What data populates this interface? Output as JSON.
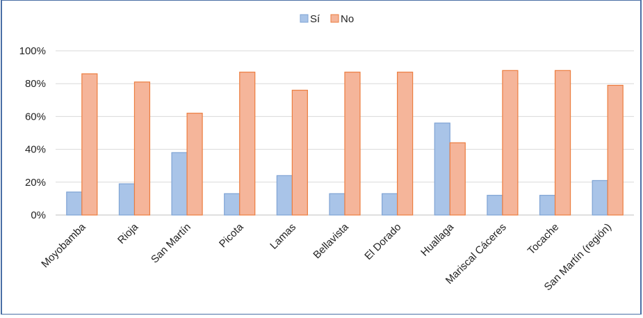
{
  "chart_data": {
    "type": "bar",
    "title": "",
    "xlabel": "",
    "ylabel": "",
    "categories": [
      "Moyobamba",
      "Rioja",
      "San Martín",
      "Picota",
      "Lamas",
      "Bellavista",
      "El Dorado",
      "Huallaga",
      "Mariscal Cáceres",
      "Tocache",
      "San Martín (región)"
    ],
    "series": [
      {
        "name": "Sí",
        "values": [
          14,
          19,
          38,
          13,
          24,
          13,
          13,
          56,
          12,
          12,
          21
        ],
        "color": "#a9c4e8",
        "stroke": "#7ea3d4"
      },
      {
        "name": "No",
        "values": [
          86,
          81,
          62,
          87,
          76,
          87,
          87,
          44,
          88,
          88,
          79
        ],
        "color": "#f5b59a",
        "stroke": "#ec7d3f"
      }
    ],
    "yticks": [
      "0%",
      "20%",
      "40%",
      "60%",
      "80%",
      "100%"
    ],
    "ylim": [
      0,
      100
    ],
    "grid": true,
    "legend_position": "top-center"
  },
  "colors": {
    "border": "#4a6fa5",
    "grid": "#d9d9d9",
    "axis": "#bfbfbf"
  }
}
